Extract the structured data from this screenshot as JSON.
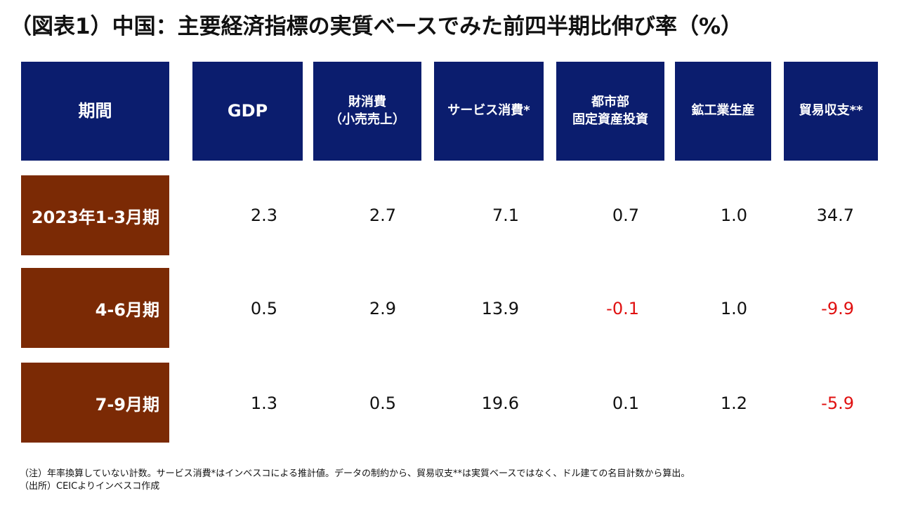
{
  "title": "（図表1）中国：主要経済指標の実質ベースでみた前四半期比伸び率（%）",
  "headers": {
    "period": "期間",
    "gdp": "GDP",
    "retail": "財消費\n（小売売上）",
    "services": "サービス消費*",
    "fai": "都市部\n固定資産投資",
    "industrial": "鉱工業生産",
    "trade": "貿易収支**"
  },
  "rows": [
    {
      "label": "2023年1-3月期",
      "gdp": "2.3",
      "retail": "2.7",
      "services": "7.1",
      "fai": "0.7",
      "industrial": "1.0",
      "trade": "34.7"
    },
    {
      "label": "4-6月期",
      "gdp": "0.5",
      "retail": "2.9",
      "services": "13.9",
      "fai": "-0.1",
      "industrial": "1.0",
      "trade": "-9.9"
    },
    {
      "label": "7-9月期",
      "gdp": "1.3",
      "retail": "0.5",
      "services": "19.6",
      "fai": "0.1",
      "industrial": "1.2",
      "trade": "-5.9"
    }
  ],
  "notes": {
    "note": "（注）年率換算していない計数。サービス消費*はインベスコによる推計値。データの制約から、貿易収支**は実質ベースではなく、ドル建ての名目計数から算出。",
    "source": "（出所）CEICよりインベスコ作成"
  },
  "colors": {
    "header_bg": "#0b1d6e",
    "row_label_bg": "#7b2a05",
    "negative": "#e01010",
    "positive": "#111111"
  }
}
